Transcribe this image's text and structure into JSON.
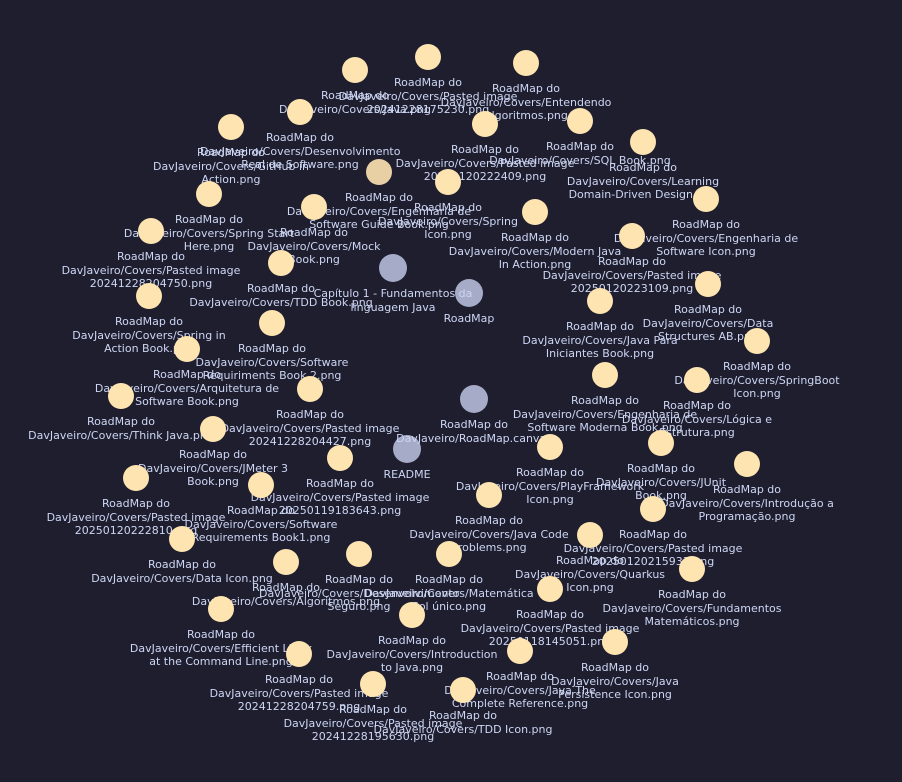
{
  "app": {
    "view": "Graph view",
    "colors": {
      "background": "#1e1e2e",
      "attachment_node": "#fde4b0",
      "note_node": "#a6acc8",
      "label": "#cdd6f4"
    }
  },
  "graph": {
    "nodes": [
      {
        "id": "n-readme",
        "kind": "note",
        "label": "README"
      },
      {
        "id": "n-roadmap",
        "kind": "note",
        "label": "RoadMap"
      },
      {
        "id": "n-capitulo",
        "kind": "note",
        "label": "Capítulo 1 - Fundamentos da\nlinguagem Java"
      },
      {
        "id": "n-canvas",
        "kind": "note",
        "label": "RoadMap do\nDavJaveiro/RoadMap.canvas"
      },
      {
        "id": "n-01",
        "kind": "attachment",
        "label": "RoadMap do\nDavJaveiro/Covers/Pasted image\n20241228175230.png"
      },
      {
        "id": "n-02",
        "kind": "attachment",
        "label": "RoadMap do\nDavJaveiro/Covers/Entendendo\nAlgoritmos.png"
      },
      {
        "id": "n-03",
        "kind": "attachment",
        "label": "RoadMap do\nDavJaveiro/Covers/Java.png"
      },
      {
        "id": "n-04",
        "kind": "attachment",
        "label": "RoadMap do\nDavJaveiro/Covers/Desenvolvimento\nReal de Software.png"
      },
      {
        "id": "n-05",
        "kind": "attachment",
        "label": "RoadMap do\nDavJaveiro/Covers/Pasted image\n20250120222409.png"
      },
      {
        "id": "n-06",
        "kind": "attachment",
        "label": "RoadMap do\nDavJaveiro/Covers/SQL Book.png"
      },
      {
        "id": "n-07",
        "kind": "attachment",
        "label": "RoadMap do\nDavJaveiro/Covers/GitHub in\nAction.png"
      },
      {
        "id": "n-08",
        "kind": "attachment",
        "label": "RoadMap do\nDavJaveiro/Covers/Learning\nDomain-Driven Design.png"
      },
      {
        "id": "n-09",
        "kind": "attachment",
        "label": "RoadMap do\nDavJaveiro/Covers/Engenharia de\nSoftware Guide Book.png"
      },
      {
        "id": "n-10",
        "kind": "attachment",
        "label": "RoadMap do\nDavJaveiro/Covers/Spring\nIcon.png"
      },
      {
        "id": "n-11",
        "kind": "attachment",
        "label": "RoadMap do\nDavJaveiro/Covers/Spring Start\nHere.png"
      },
      {
        "id": "n-12",
        "kind": "attachment",
        "label": "RoadMap do\nDavJaveiro/Covers/Mock\nBook.png"
      },
      {
        "id": "n-13",
        "kind": "attachment",
        "label": "RoadMap do\nDavJaveiro/Covers/Modern Java\nIn Action.png"
      },
      {
        "id": "n-14",
        "kind": "attachment",
        "label": "RoadMap do\nDavJaveiro/Covers/Engenharia de\nSoftware Icon.png"
      },
      {
        "id": "n-15",
        "kind": "attachment",
        "label": "RoadMap do\nDavJaveiro/Covers/Pasted image\n20241228204750.png"
      },
      {
        "id": "n-16",
        "kind": "attachment",
        "label": "RoadMap do\nDavJaveiro/Covers/TDD Book.png"
      },
      {
        "id": "n-17",
        "kind": "attachment",
        "label": "RoadMap do\nDavJaveiro/Covers/Pasted image\n20250120223109.png"
      },
      {
        "id": "n-18",
        "kind": "attachment",
        "label": "RoadMap do\nDavJaveiro/Covers/Spring in\nAction Book.png"
      },
      {
        "id": "n-19",
        "kind": "attachment",
        "label": "RoadMap do\nDavJaveiro/Covers/Data\nStructures AB.png"
      },
      {
        "id": "n-20",
        "kind": "attachment",
        "label": "RoadMap do\nDavJaveiro/Covers/Software\nRequiriments Book 2.png"
      },
      {
        "id": "n-21",
        "kind": "attachment",
        "label": "RoadMap do\nDavJaveiro/Covers/Java Para\nIniciantes Book.png"
      },
      {
        "id": "n-22",
        "kind": "attachment",
        "label": "RoadMap do\nDavJaveiro/Covers/Arquitetura de\nSoftware Book.png"
      },
      {
        "id": "n-23",
        "kind": "attachment",
        "label": "RoadMap do\nDavJaveiro/Covers/SpringBoot\nIcon.png"
      },
      {
        "id": "n-24",
        "kind": "attachment",
        "label": "RoadMap do\nDavJaveiro/Covers/Think Java.png"
      },
      {
        "id": "n-25",
        "kind": "attachment",
        "label": "RoadMap do\nDavJaveiro/Covers/Pasted image\n20241228204427.png"
      },
      {
        "id": "n-26",
        "kind": "attachment",
        "label": "RoadMap do\nDavJaveiro/Covers/Engenharia de\nSoftware Moderna Book.png"
      },
      {
        "id": "n-27",
        "kind": "attachment",
        "label": "RoadMap do\nDavJaveiro/Covers/Lógica e\nEstrutura.png"
      },
      {
        "id": "n-28",
        "kind": "attachment",
        "label": "RoadMap do\nDavJaveiro/Covers/JMeter 3\nBook.png"
      },
      {
        "id": "n-29",
        "kind": "attachment",
        "label": "RoadMap do\nDavJaveiro/Covers/Pasted image\n20250120222810.png"
      },
      {
        "id": "n-30",
        "kind": "attachment",
        "label": "RoadMap do\nDavJaveiro/Covers/Pasted image\n20250119183643.png"
      },
      {
        "id": "n-31",
        "kind": "attachment",
        "label": "RoadMap do\nDavJaveiro/Covers/PlayFramework\nIcon.png"
      },
      {
        "id": "n-32",
        "kind": "attachment",
        "label": "RoadMap do\nDavJaveiro/Covers/JUnit\nBook.png"
      },
      {
        "id": "n-33",
        "kind": "attachment",
        "label": "RoadMap do\nDavJaveiro/Covers/Introdução a\nProgramação.png"
      },
      {
        "id": "n-34",
        "kind": "attachment",
        "label": "RoadMap do\nDavJaveiro/Covers/Software\nRequirements Book1.png"
      },
      {
        "id": "n-35",
        "kind": "attachment",
        "label": "RoadMap do\nDavJaveiro/Covers/Java Code\nProblems.png"
      },
      {
        "id": "n-36",
        "kind": "attachment",
        "label": "RoadMap do\nDavJaveiro/Covers/Pasted image\n20250120215933.png"
      },
      {
        "id": "n-37",
        "kind": "attachment",
        "label": "RoadMap do\nDavJaveiro/Covers/Data Icon.png"
      },
      {
        "id": "n-38",
        "kind": "attachment",
        "label": "RoadMap do\nDavJaveiro/Covers/Quarkus\nIcon.png"
      },
      {
        "id": "n-39",
        "kind": "attachment",
        "label": "RoadMap do\nDavJaveiro/Covers/Algoritmos.png"
      },
      {
        "id": "n-40",
        "kind": "attachment",
        "label": "RoadMap do\nDavJaveiro/Covers/Desenvolvimento\nSeguro.png"
      },
      {
        "id": "n-41",
        "kind": "attachment",
        "label": "RoadMap do\nDavJaveiro/Covers/Matemática\nSol único.png"
      },
      {
        "id": "n-42",
        "kind": "attachment",
        "label": "RoadMap do\nDavJaveiro/Covers/Fundamentos\nMatemáticos.png"
      },
      {
        "id": "n-43",
        "kind": "attachment",
        "label": "RoadMap do\nDavJaveiro/Covers/Efficient Linux\nat the Command Line.png"
      },
      {
        "id": "n-44",
        "kind": "attachment",
        "label": "RoadMap do\nDavJaveiro/Covers/Introduction\nto Java.png"
      },
      {
        "id": "n-45",
        "kind": "attachment",
        "label": "RoadMap do\nDavJaveiro/Covers/Pasted image\n20250118145051.png"
      },
      {
        "id": "n-46",
        "kind": "attachment",
        "label": "RoadMap do\nDavJaveiro/Covers/Java\nPersistence Icon.png"
      },
      {
        "id": "n-47",
        "kind": "attachment",
        "label": "RoadMap do\nDavJaveiro/Covers/Java The\nComplete Reference.png"
      },
      {
        "id": "n-48",
        "kind": "attachment",
        "label": "RoadMap do\nDavJaveiro/Covers/Pasted image\n20241228204759.png"
      },
      {
        "id": "n-49",
        "kind": "attachment",
        "label": "RoadMap do\nDavJaveiro/Covers/Pasted image\n20241228195630.png"
      },
      {
        "id": "n-50",
        "kind": "attachment",
        "label": "RoadMap do\nDavJaveiro/Covers/TDD Icon.png"
      }
    ]
  }
}
